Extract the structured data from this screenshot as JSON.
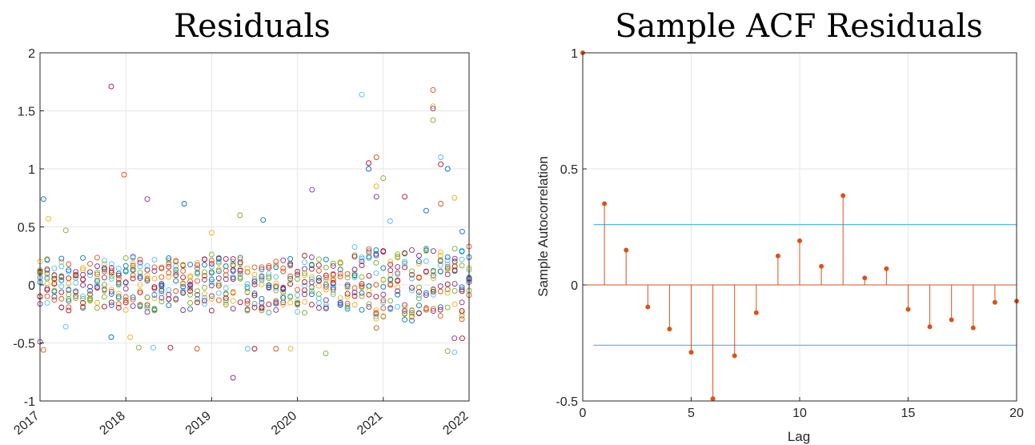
{
  "chart_data": [
    {
      "type": "scatter",
      "title": "Residuals",
      "xlabel": "",
      "ylabel": "",
      "xlim": [
        2017,
        2022
      ],
      "ylim": [
        -1,
        2
      ],
      "xticks": [
        "2017",
        "2018",
        "2019",
        "2020",
        "2021",
        "2022"
      ],
      "yticks": [
        "-1",
        "-0.5",
        "0",
        "0.5",
        "1",
        "1.5",
        "2"
      ],
      "grid": true,
      "marker": "open-circle",
      "series_colors": [
        "#0072BD",
        "#D95319",
        "#EDB120",
        "#7E2F8E",
        "#77AC30",
        "#4DBEEE",
        "#A2142F"
      ],
      "monthly_points_per_date": 12,
      "monthly_spread": {
        "lower": -0.22,
        "upper": 0.22
      },
      "outliers": [
        {
          "x": 2017.04,
          "y": 0.74
        },
        {
          "x": 2017.04,
          "y": -0.56
        },
        {
          "x": 2017.1,
          "y": 0.57
        },
        {
          "x": 2017.0,
          "y": -0.49
        },
        {
          "x": 2017.3,
          "y": 0.47
        },
        {
          "x": 2017.3,
          "y": -0.36
        },
        {
          "x": 2017.83,
          "y": 1.71
        },
        {
          "x": 2017.83,
          "y": -0.45
        },
        {
          "x": 2017.98,
          "y": 0.95
        },
        {
          "x": 2018.05,
          "y": -0.45
        },
        {
          "x": 2018.25,
          "y": 0.74
        },
        {
          "x": 2018.15,
          "y": -0.54
        },
        {
          "x": 2018.32,
          "y": -0.54
        },
        {
          "x": 2018.52,
          "y": -0.54
        },
        {
          "x": 2018.68,
          "y": 0.7
        },
        {
          "x": 2018.83,
          "y": -0.55
        },
        {
          "x": 2019.0,
          "y": 0.45
        },
        {
          "x": 2019.25,
          "y": -0.8
        },
        {
          "x": 2019.33,
          "y": 0.6
        },
        {
          "x": 2019.42,
          "y": -0.55
        },
        {
          "x": 2019.5,
          "y": -0.55
        },
        {
          "x": 2019.6,
          "y": 0.56
        },
        {
          "x": 2019.75,
          "y": -0.55
        },
        {
          "x": 2019.92,
          "y": -0.55
        },
        {
          "x": 2020.17,
          "y": 0.82
        },
        {
          "x": 2020.33,
          "y": -0.59
        },
        {
          "x": 2020.75,
          "y": 1.64
        },
        {
          "x": 2020.83,
          "y": 1.05
        },
        {
          "x": 2020.83,
          "y": 1.0
        },
        {
          "x": 2020.92,
          "y": 1.1
        },
        {
          "x": 2020.92,
          "y": 0.85
        },
        {
          "x": 2020.92,
          "y": 0.76
        },
        {
          "x": 2021.0,
          "y": 0.92
        },
        {
          "x": 2021.08,
          "y": 0.55
        },
        {
          "x": 2021.25,
          "y": 0.76
        },
        {
          "x": 2021.5,
          "y": 0.64
        },
        {
          "x": 2021.58,
          "y": 1.68
        },
        {
          "x": 2021.58,
          "y": 1.54
        },
        {
          "x": 2021.58,
          "y": 1.52
        },
        {
          "x": 2021.58,
          "y": 1.42
        },
        {
          "x": 2021.67,
          "y": 1.1
        },
        {
          "x": 2021.67,
          "y": 1.04
        },
        {
          "x": 2021.75,
          "y": 1.0
        },
        {
          "x": 2021.67,
          "y": 0.7
        },
        {
          "x": 2021.83,
          "y": 0.75
        },
        {
          "x": 2021.83,
          "y": -0.46
        },
        {
          "x": 2021.75,
          "y": -0.57
        },
        {
          "x": 2021.83,
          "y": -0.58
        },
        {
          "x": 2021.92,
          "y": -0.46
        },
        {
          "x": 2021.92,
          "y": 0.46
        },
        {
          "x": 2020.92,
          "y": -0.37
        },
        {
          "x": 2021.33,
          "y": -0.28
        }
      ]
    },
    {
      "type": "stem",
      "title": "Sample ACF Residuals",
      "xlabel": "Lag",
      "ylabel": "Sample Autocorrelation",
      "xlim": [
        0,
        20
      ],
      "ylim": [
        -0.5,
        1
      ],
      "xticks": [
        "0",
        "5",
        "10",
        "15",
        "20"
      ],
      "yticks": [
        "-0.5",
        "0",
        "0.5",
        "1"
      ],
      "grid": true,
      "stem_color": "#D95319",
      "bound_color": "#4DBEEE",
      "confidence_bounds": [
        0.26,
        -0.26
      ],
      "lags": [
        0,
        1,
        2,
        3,
        4,
        5,
        6,
        7,
        8,
        9,
        10,
        11,
        12,
        13,
        14,
        15,
        16,
        17,
        18,
        19,
        20
      ],
      "values": [
        1.0,
        0.35,
        0.15,
        -0.095,
        -0.19,
        -0.29,
        -0.49,
        -0.305,
        -0.12,
        0.125,
        0.19,
        0.08,
        0.385,
        0.03,
        0.07,
        -0.105,
        -0.18,
        -0.15,
        -0.185,
        -0.075,
        -0.07
      ]
    }
  ]
}
